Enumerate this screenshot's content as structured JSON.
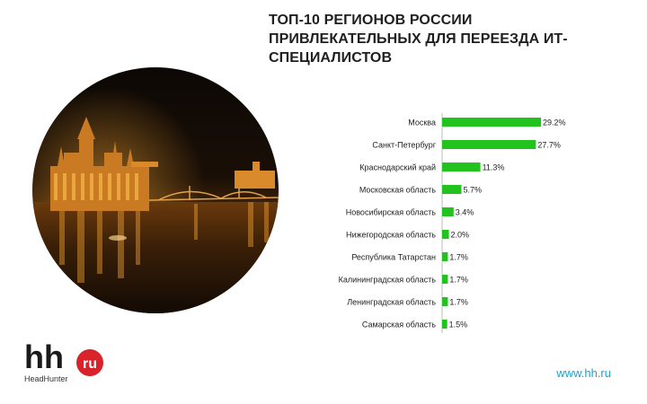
{
  "title_lines": [
    "ТОП-10 РЕГИОНОВ РОССИИ",
    "ПРИВЛЕКАТЕЛЬНЫХ ДЛЯ ПЕРЕЕЗДА ИТ-",
    "СПЕЦИАЛИСТОВ"
  ],
  "logo": {
    "text_main": "hh",
    "text_badge": "ru",
    "caption": "HeadHunter"
  },
  "website": "www.hh.ru",
  "colors": {
    "bar": "#22c21f",
    "badge": "#d8232a",
    "link": "#1aa3d8",
    "axis": "#bbbbbb"
  },
  "photo": {
    "icon": "night-city-river-photo"
  },
  "chart_data": {
    "type": "bar",
    "orientation": "horizontal",
    "categories": [
      "Москва",
      "Санкт-Петербург",
      "Краснодарский край",
      "Московская область",
      "Новосибирская область",
      "Нижегородская область",
      "Республика Татарстан",
      "Калининградская область",
      "Ленинградская область",
      "Самарская область"
    ],
    "values": [
      29.2,
      27.7,
      11.3,
      5.7,
      3.4,
      2.0,
      1.7,
      1.7,
      1.7,
      1.5
    ],
    "value_labels": [
      "29.2%",
      "27.7%",
      "11.3%",
      "5.7%",
      "3.4%",
      "2.0%",
      "1.7%",
      "1.7%",
      "1.7%",
      "1.5%"
    ],
    "xlim": [
      0,
      29.2
    ],
    "grid": false,
    "legend": "none"
  }
}
